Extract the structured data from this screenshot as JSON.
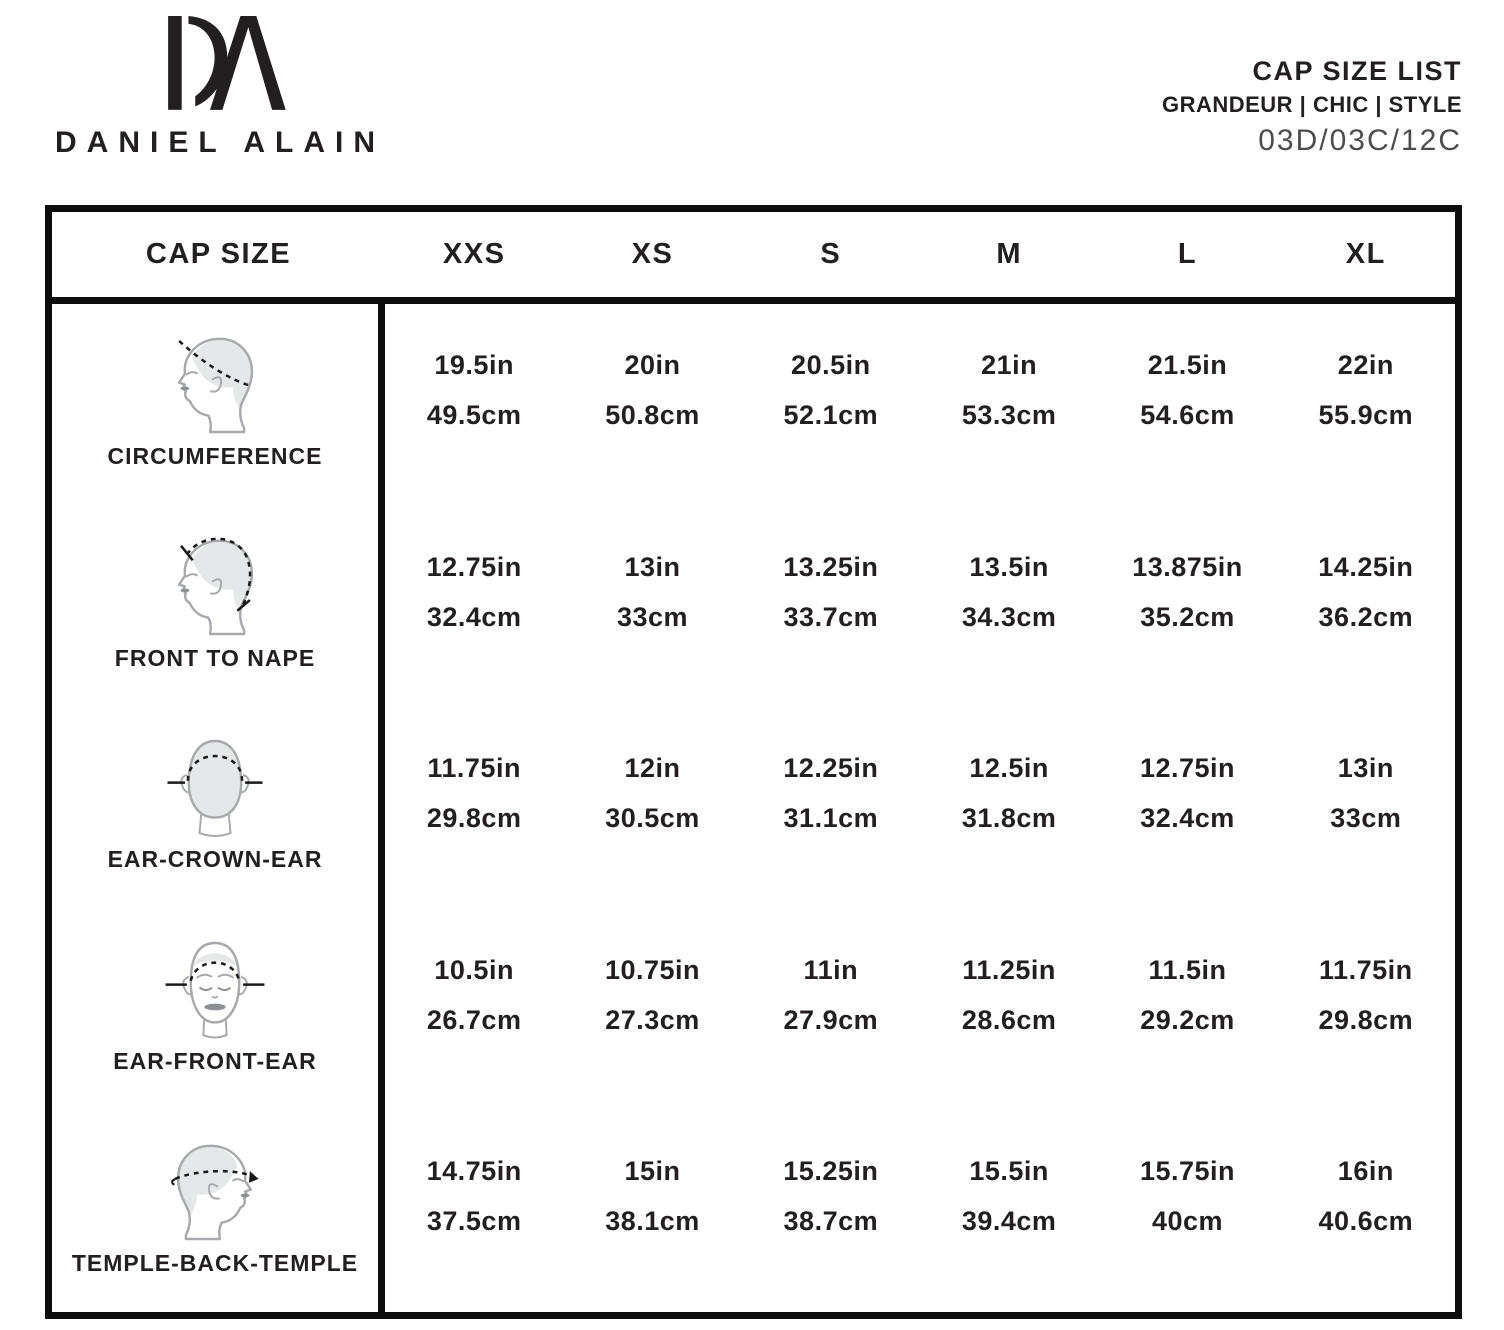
{
  "brand": {
    "monogram": "DA",
    "name": "DANIEL ALAIN"
  },
  "doc_header": {
    "title": "CAP SIZE LIST",
    "subtitle": "GRANDEUR | CHIC | STYLE",
    "code": "03D/03C/12C"
  },
  "table": {
    "corner_label": "CAP SIZE",
    "size_columns": [
      "XXS",
      "XS",
      "S",
      "M",
      "L",
      "XL"
    ],
    "rows": [
      {
        "label": "CIRCUMFERENCE",
        "icon": "head-side-circumference-icon",
        "inches": [
          "19.5in",
          "20in",
          "20.5in",
          "21in",
          "21.5in",
          "22in"
        ],
        "centimeters": [
          "49.5cm",
          "50.8cm",
          "52.1cm",
          "53.3cm",
          "54.6cm",
          "55.9cm"
        ]
      },
      {
        "label": "FRONT TO NAPE",
        "icon": "head-side-front-to-nape-icon",
        "inches": [
          "12.75in",
          "13in",
          "13.25in",
          "13.5in",
          "13.875in",
          "14.25in"
        ],
        "centimeters": [
          "32.4cm",
          "33cm",
          "33.7cm",
          "34.3cm",
          "35.2cm",
          "36.2cm"
        ]
      },
      {
        "label": "EAR-CROWN-EAR",
        "icon": "head-back-ear-crown-ear-icon",
        "inches": [
          "11.75in",
          "12in",
          "12.25in",
          "12.5in",
          "12.75in",
          "13in"
        ],
        "centimeters": [
          "29.8cm",
          "30.5cm",
          "31.1cm",
          "31.8cm",
          "32.4cm",
          "33cm"
        ]
      },
      {
        "label": "EAR-FRONT-EAR",
        "icon": "head-front-ear-front-ear-icon",
        "inches": [
          "10.5in",
          "10.75in",
          "11in",
          "11.25in",
          "11.5in",
          "11.75in"
        ],
        "centimeters": [
          "26.7cm",
          "27.3cm",
          "27.9cm",
          "28.6cm",
          "29.2cm",
          "29.8cm"
        ]
      },
      {
        "label": "TEMPLE-BACK-TEMPLE",
        "icon": "head-side-temple-back-temple-icon",
        "inches": [
          "14.75in",
          "15in",
          "15.25in",
          "15.5in",
          "15.75in",
          "16in"
        ],
        "centimeters": [
          "37.5cm",
          "38.1cm",
          "38.7cm",
          "39.4cm",
          "40cm",
          "40.6cm"
        ]
      }
    ]
  },
  "colors": {
    "text": "#231f20",
    "border": "#0d0d0d",
    "icon_outline": "#a7a9ac",
    "icon_fill": "#e6e7e8",
    "icon_feature": "#8e9194",
    "measure_line": "#1a1a1a",
    "code_text": "#4d4d4f"
  }
}
